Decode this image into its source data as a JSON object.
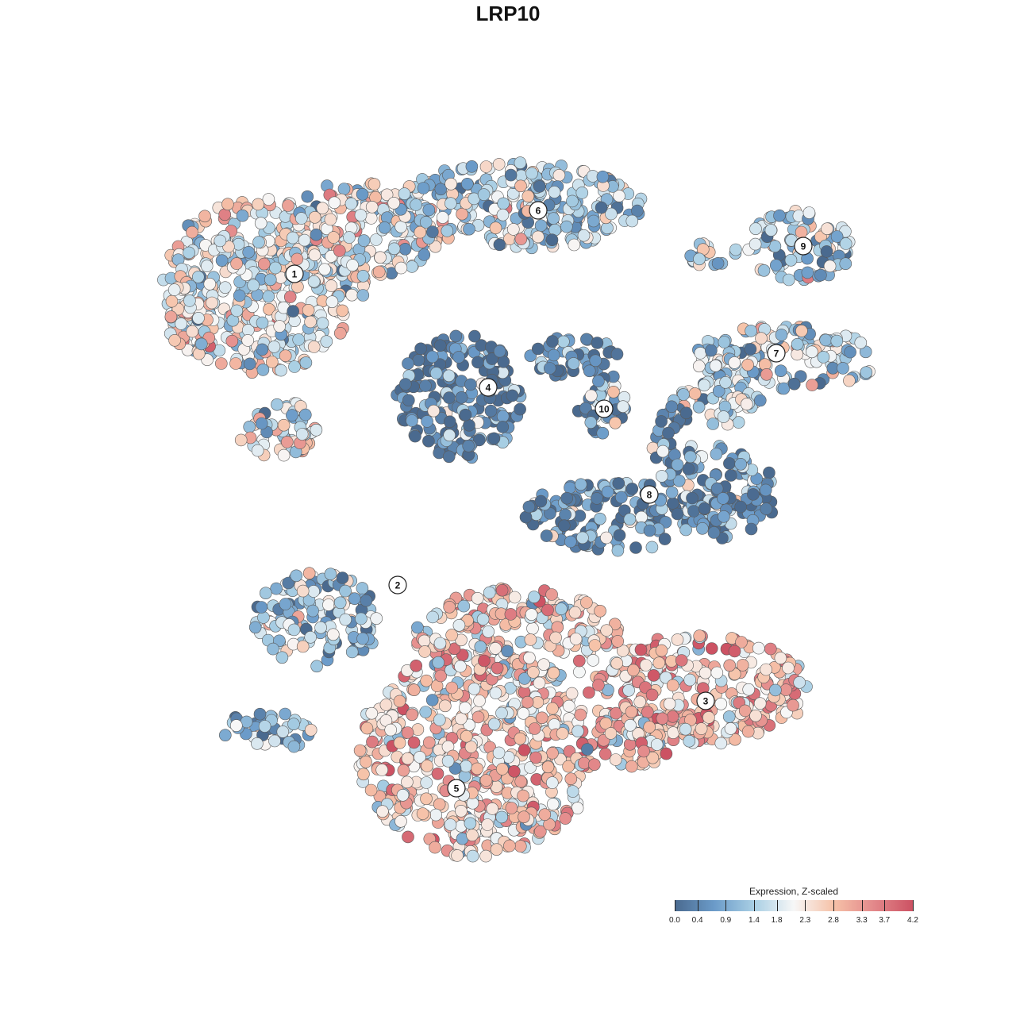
{
  "title": "LRP10",
  "chart_data": {
    "type": "scatter",
    "title": "LRP10",
    "xlabel": "",
    "ylabel": "",
    "grid": false,
    "legend_placement": "bottom-right",
    "color_scale": {
      "title": "Expression, Z-scaled",
      "min": 0.0,
      "max": 4.2,
      "ticks": [
        0.0,
        0.4,
        0.9,
        1.4,
        1.8,
        2.3,
        2.8,
        3.3,
        3.7,
        4.2
      ],
      "tick_labels": [
        "0.0",
        "0.4",
        "0.9",
        "1.4",
        "1.8",
        "2.3",
        "2.8",
        "3.3",
        "3.7",
        "4.2"
      ],
      "colors": [
        "#4a6a8f",
        "#6b9bc9",
        "#a9cfe4",
        "#f7f7f7",
        "#f6c2a8",
        "#e3898b",
        "#cc5263"
      ]
    },
    "clusters": [
      {
        "label": "1",
        "mean_expression": 2.0
      },
      {
        "label": "2",
        "mean_expression": 1.2
      },
      {
        "label": "3",
        "mean_expression": 2.8
      },
      {
        "label": "4",
        "mean_expression": 0.3
      },
      {
        "label": "5",
        "mean_expression": 2.6
      },
      {
        "label": "6",
        "mean_expression": 1.4
      },
      {
        "label": "7",
        "mean_expression": 1.6
      },
      {
        "label": "8",
        "mean_expression": 0.5
      },
      {
        "label": "9",
        "mean_expression": 1.3
      },
      {
        "label": "10",
        "mean_expression": 0.9
      }
    ]
  }
}
